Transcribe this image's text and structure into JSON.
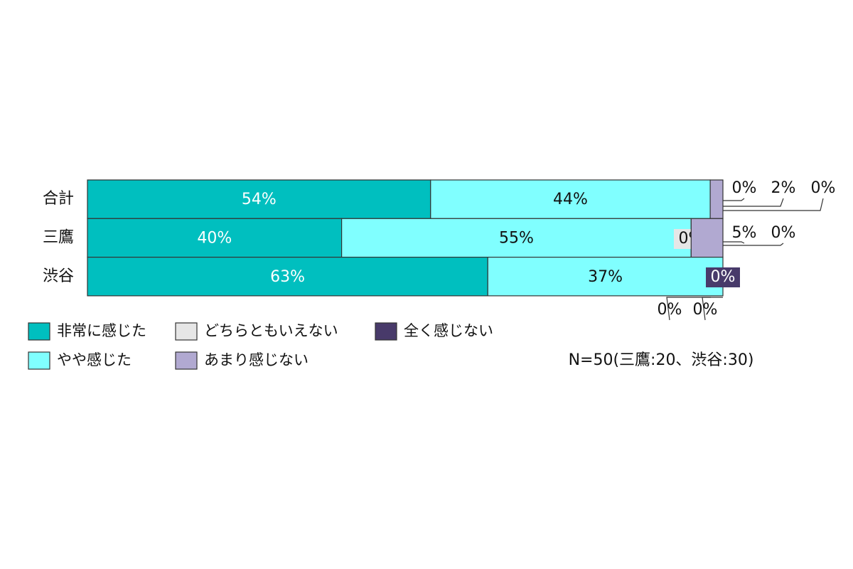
{
  "chart_data": {
    "type": "stacked_barh",
    "categories": [
      "合計",
      "三鷹",
      "渋谷"
    ],
    "xlim": [
      0,
      100
    ],
    "series": [
      {
        "name": "非常に感じた",
        "color": "#00bfbf",
        "values": [
          54,
          40,
          63
        ],
        "value_labels": [
          "54%",
          "40%",
          "63%"
        ]
      },
      {
        "name": "やや感じた",
        "color": "#80ffff",
        "values": [
          44,
          55,
          37
        ],
        "value_labels": [
          "44%",
          "55%",
          "37%"
        ]
      },
      {
        "name": "どちらともいえない",
        "color": "#e6e6e6",
        "values": [
          0,
          0,
          0
        ],
        "value_labels": [
          "0%",
          "0%",
          "0%"
        ]
      },
      {
        "name": "あまり感じない",
        "color": "#b1a9d1",
        "values": [
          2,
          5,
          0
        ],
        "value_labels": [
          "2%",
          "5%",
          "0%"
        ]
      },
      {
        "name": "全く感じない",
        "color": "#483a6a",
        "values": [
          0,
          0,
          0
        ],
        "value_labels": [
          "0%",
          "0%",
          "0%"
        ]
      }
    ],
    "annotation": "N=50(三鷹:20、渋谷:30)"
  }
}
